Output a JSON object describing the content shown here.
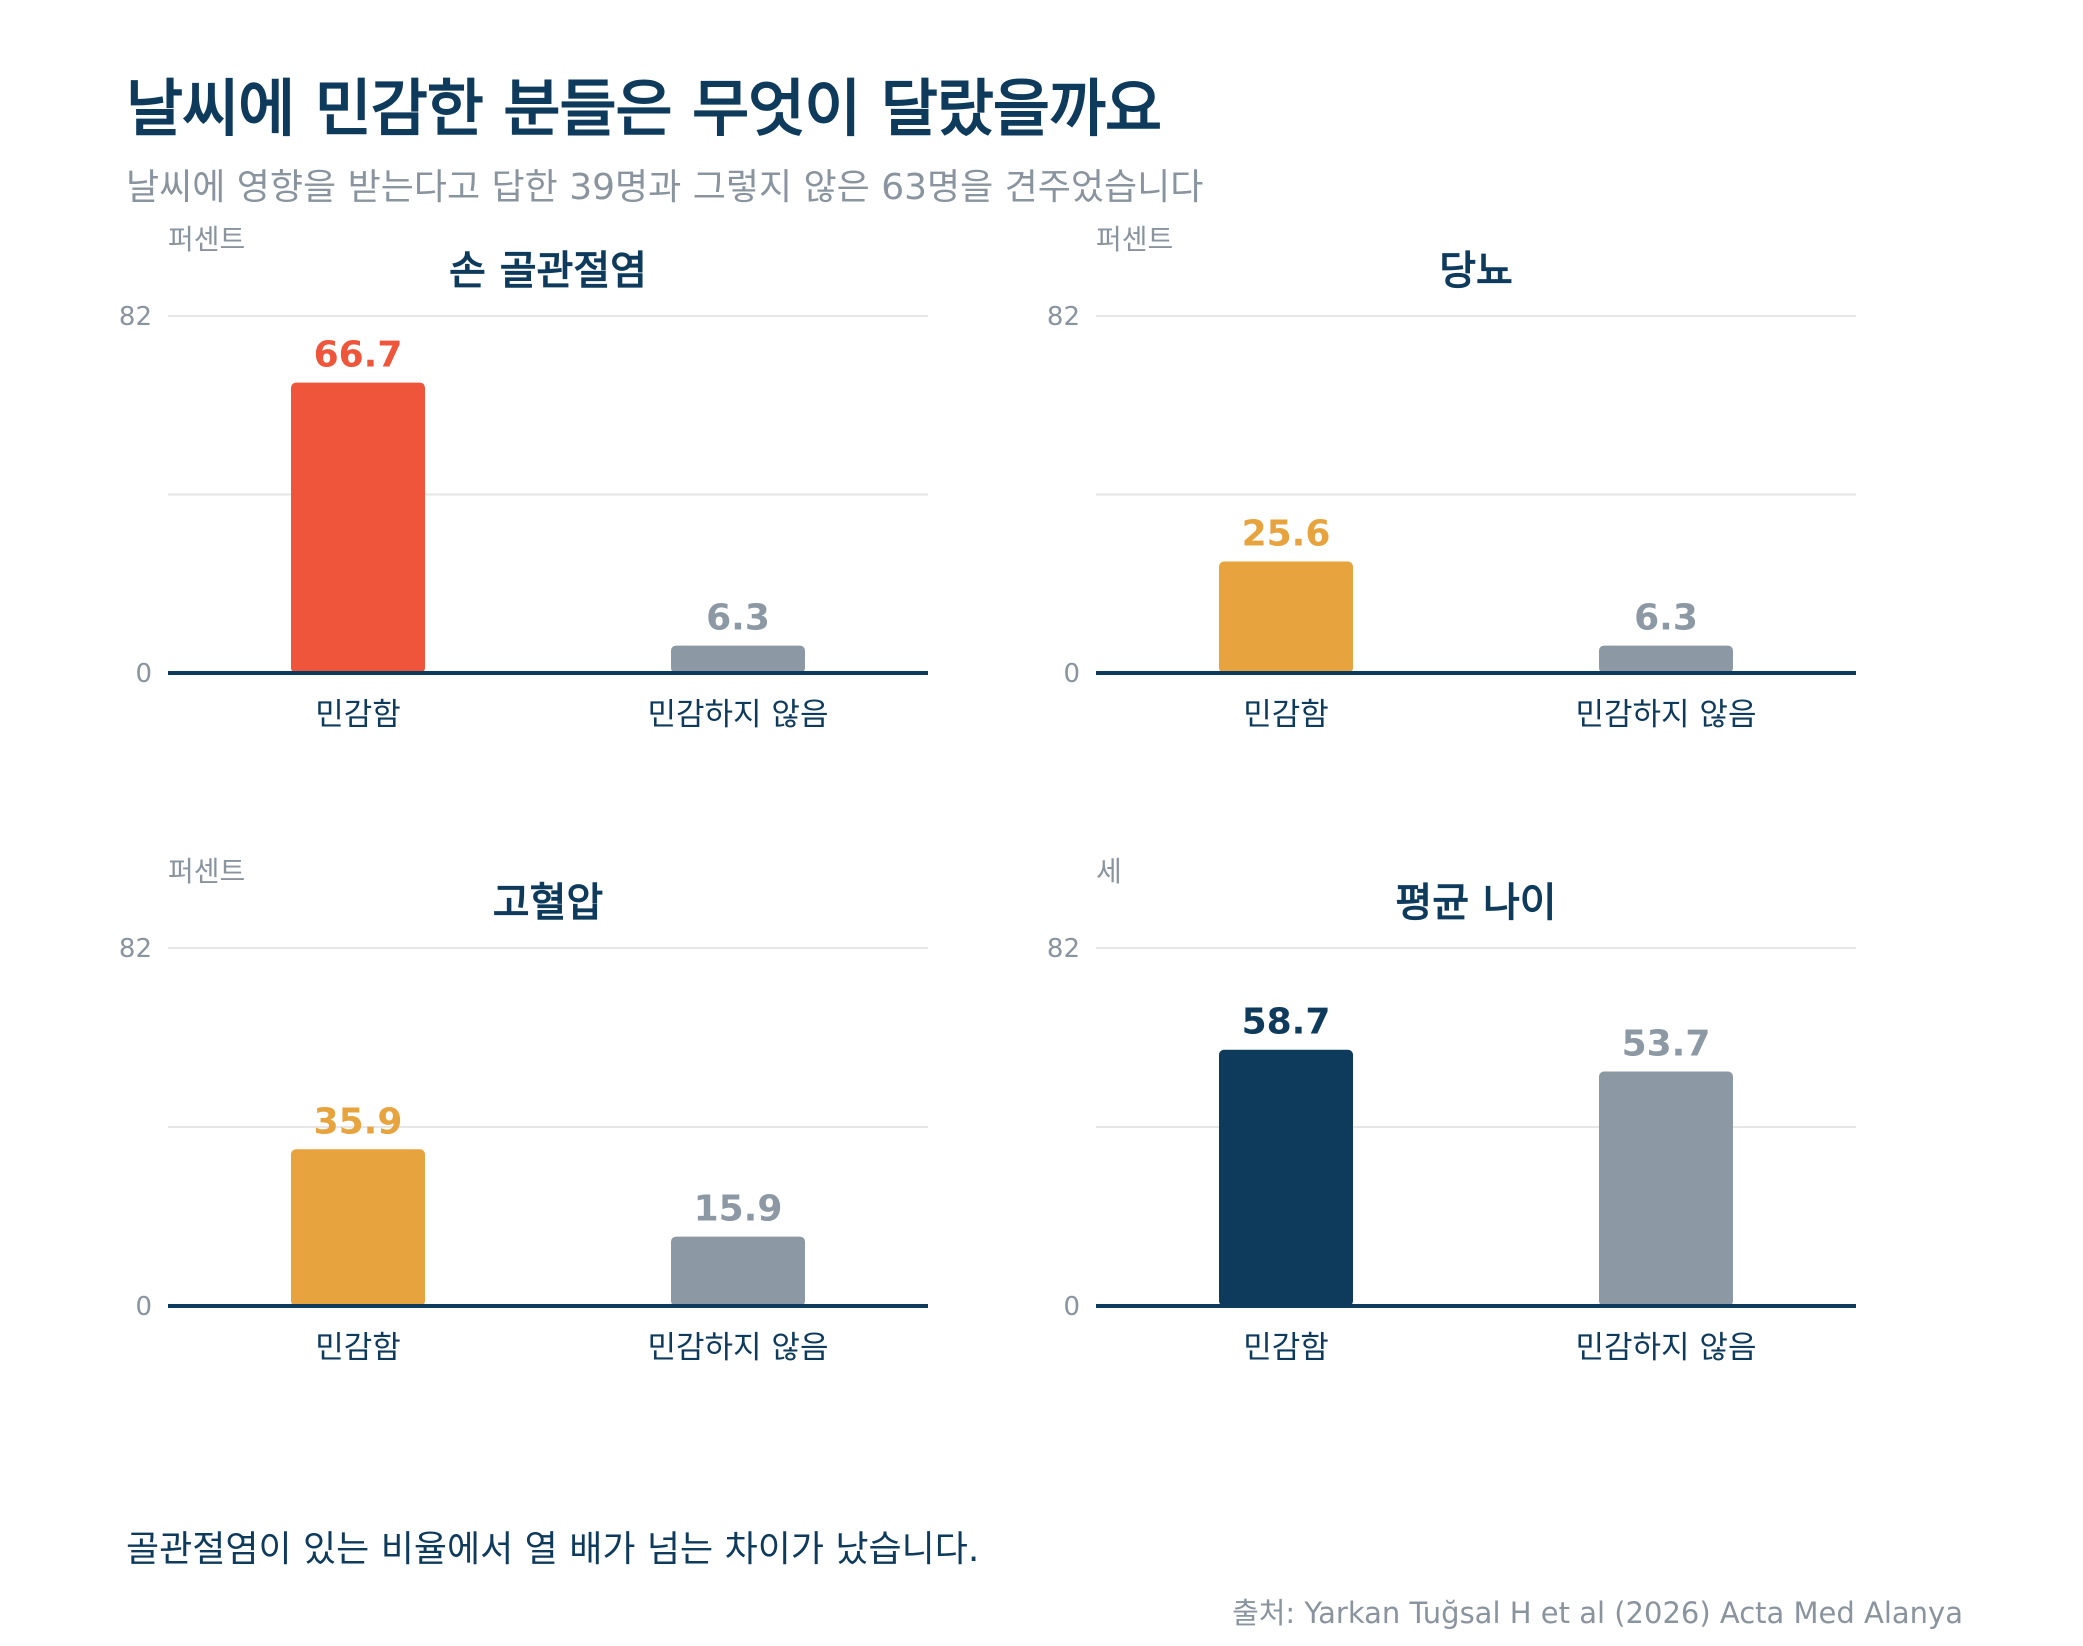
{
  "title": "날씨에 민감한 분들은 무엇이 달랐을까요",
  "subtitle": "날씨에 영향을 받는다고 답한 39명과 그렇지 않은 63명을 견주었습니다",
  "takeaway": "골관절염이 있는 비율에서 열 배가 넘는 차이가 났습니다.",
  "source": "출처: Yarkan Tuğsal H et al (2026) Acta Med Alanya",
  "colors": {
    "hand_oa": "#ef553b",
    "highlight": "#e7a33e",
    "navy": "#0e3a5c",
    "gray": "#8c98a3",
    "grid": "#e6e6e6",
    "axis": "#0e3a5c",
    "muted": "#8a949e"
  },
  "chart_data": [
    {
      "type": "bar",
      "title": "손 골관절염",
      "ylabel": "퍼센트",
      "categories": [
        "민감함",
        "민감하지 않음"
      ],
      "values": [
        66.7,
        6.3
      ],
      "bar_colors": [
        "#ef553b",
        "#8c98a3"
      ],
      "ylim": [
        0,
        82
      ],
      "yticks": [
        "0",
        "82"
      ]
    },
    {
      "type": "bar",
      "title": "당뇨",
      "ylabel": "퍼센트",
      "categories": [
        "민감함",
        "민감하지 않음"
      ],
      "values": [
        25.6,
        6.3
      ],
      "bar_colors": [
        "#e7a33e",
        "#8c98a3"
      ],
      "ylim": [
        0,
        82
      ],
      "yticks": [
        "0",
        "82"
      ]
    },
    {
      "type": "bar",
      "title": "고혈압",
      "ylabel": "퍼센트",
      "categories": [
        "민감함",
        "민감하지 않음"
      ],
      "values": [
        35.9,
        15.9
      ],
      "bar_colors": [
        "#e7a33e",
        "#8c98a3"
      ],
      "ylim": [
        0,
        82
      ],
      "yticks": [
        "0",
        "82"
      ]
    },
    {
      "type": "bar",
      "title": "평균 나이",
      "ylabel": "세",
      "categories": [
        "민감함",
        "민감하지 않음"
      ],
      "values": [
        58.7,
        53.7
      ],
      "bar_colors": [
        "#0e3a5c",
        "#8c98a3"
      ],
      "ylim": [
        0,
        82
      ],
      "yticks": [
        "0",
        "82"
      ]
    }
  ]
}
